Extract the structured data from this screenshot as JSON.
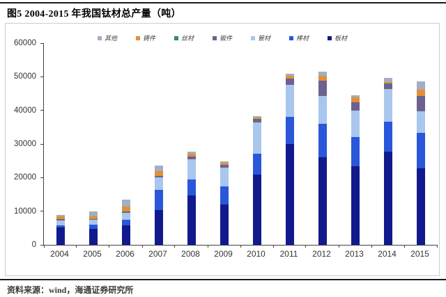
{
  "header": {
    "title": "图5  2004-2015 年我国钛材总产量（吨）"
  },
  "footer": {
    "source": "资料来源：wind，海通证券研究所"
  },
  "colors": {
    "plate": "#111a8c",
    "bar_rod": "#2a57d9",
    "pipe": "#a8c6ee",
    "forging": "#6e6190",
    "wire": "#2e8b6e",
    "casting": "#e09038",
    "other": "#a3aec0",
    "axis": "#404040",
    "rule": "#1a1a1a"
  },
  "chart_data": {
    "type": "bar",
    "stacked": true,
    "title": "图5  2004-2015 年我国钛材总产量（吨）",
    "xlabel": "",
    "ylabel": "",
    "ylim": [
      0,
      60000
    ],
    "yticks": [
      0,
      10000,
      20000,
      30000,
      40000,
      50000,
      60000
    ],
    "grid": false,
    "legend_position": "top",
    "legend_order": [
      "其他",
      "铸件",
      "丝材",
      "锻件",
      "管材",
      "棒材",
      "板材"
    ],
    "categories": [
      "2004",
      "2005",
      "2006",
      "2007",
      "2008",
      "2009",
      "2010",
      "2011",
      "2012",
      "2013",
      "2014",
      "2015"
    ],
    "series": [
      {
        "name": "板材",
        "color": "#111a8c",
        "values": [
          5100,
          4800,
          5700,
          10400,
          14600,
          11900,
          21000,
          30000,
          26000,
          23300,
          27800,
          22800
        ]
      },
      {
        "name": "棒材",
        "color": "#2a57d9",
        "values": [
          800,
          1200,
          1700,
          6000,
          4900,
          5500,
          6100,
          8100,
          10000,
          8800,
          8900,
          10600
        ]
      },
      {
        "name": "管材",
        "color": "#a8c6ee",
        "values": [
          1400,
          1400,
          2100,
          3600,
          5900,
          5500,
          9300,
          9400,
          8200,
          7800,
          9700,
          6400
        ]
      },
      {
        "name": "锻件",
        "color": "#6e6190",
        "values": [
          300,
          200,
          400,
          400,
          800,
          800,
          900,
          1900,
          4600,
          2500,
          1500,
          4300
        ]
      },
      {
        "name": "丝材",
        "color": "#2e8b6e",
        "values": [
          100,
          100,
          100,
          100,
          100,
          100,
          100,
          100,
          100,
          100,
          100,
          100
        ]
      },
      {
        "name": "铸件",
        "color": "#e09038",
        "values": [
          800,
          800,
          1400,
          1500,
          900,
          600,
          500,
          800,
          1400,
          1300,
          400,
          1900
        ]
      },
      {
        "name": "其他",
        "color": "#a3aec0",
        "values": [
          500,
          1400,
          2100,
          1600,
          600,
          500,
          400,
          700,
          1200,
          700,
          1300,
          2500
        ]
      }
    ],
    "totals": [
      9000,
      9900,
      13500,
      23600,
      27800,
      24900,
      38300,
      51000,
      51500,
      44500,
      49700,
      48600
    ]
  }
}
